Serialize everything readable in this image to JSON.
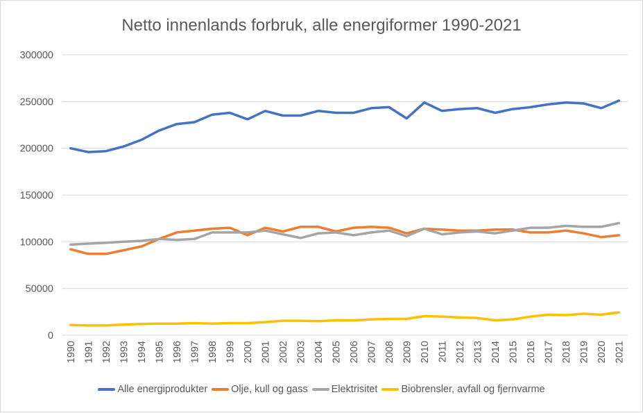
{
  "chart_data": {
    "type": "line",
    "title": "Netto innenlands forbruk, alle energiformer 1990-2021",
    "xlabel": "",
    "ylabel": "",
    "ylim": [
      0,
      300000
    ],
    "yticks": [
      "0",
      "50000",
      "100000",
      "150000",
      "200000",
      "250000",
      "300000"
    ],
    "grid": true,
    "legend_position": "bottom",
    "x": [
      "1990",
      "1991",
      "1992",
      "1993",
      "1994",
      "1995",
      "1996",
      "1997",
      "1998",
      "1999",
      "2000",
      "2001",
      "2002",
      "2003",
      "2004",
      "2005",
      "2006",
      "2007",
      "2008",
      "2009",
      "2010",
      "2011",
      "2012",
      "2013",
      "2014",
      "2015",
      "2016",
      "2017",
      "2018",
      "2019",
      "2020",
      "2021"
    ],
    "series": [
      {
        "name": "Alle energiprodukter",
        "color": "#4472c4",
        "values": [
          200000,
          196000,
          197000,
          202000,
          209000,
          219000,
          226000,
          228000,
          236000,
          238000,
          231000,
          240000,
          235000,
          235000,
          240000,
          238000,
          238000,
          243000,
          244000,
          232000,
          249000,
          240000,
          242000,
          243000,
          238000,
          242000,
          244000,
          247000,
          249000,
          248000,
          243000,
          251000
        ]
      },
      {
        "name": "Olje, kull og gass",
        "color": "#ed7d31",
        "values": [
          92000,
          87000,
          87000,
          91000,
          95000,
          103000,
          110000,
          112000,
          114000,
          115000,
          107000,
          115000,
          111000,
          116000,
          116000,
          111000,
          115000,
          116000,
          115000,
          109000,
          114000,
          113000,
          112000,
          112000,
          113000,
          113000,
          110000,
          110000,
          112000,
          109000,
          105000,
          107000
        ]
      },
      {
        "name": "Elektrisitet",
        "color": "#a5a5a5",
        "values": [
          97000,
          98000,
          99000,
          100000,
          101000,
          103000,
          102000,
          103000,
          110000,
          110000,
          110000,
          112000,
          108000,
          104000,
          109000,
          110000,
          107000,
          110000,
          112000,
          106000,
          114000,
          108000,
          110000,
          111000,
          109000,
          112000,
          115000,
          115000,
          117000,
          116000,
          116000,
          120000
        ]
      },
      {
        "name": "Biobrensler, avfall og fjernvarme",
        "color": "#ffc000",
        "values": [
          11000,
          10500,
          10500,
          11500,
          12000,
          12500,
          12500,
          13000,
          12500,
          13000,
          13000,
          14000,
          15500,
          15500,
          15000,
          16000,
          16000,
          17000,
          17500,
          17500,
          20500,
          20000,
          19000,
          18500,
          16000,
          17000,
          20000,
          22000,
          21500,
          23000,
          22000,
          24500
        ]
      }
    ]
  }
}
